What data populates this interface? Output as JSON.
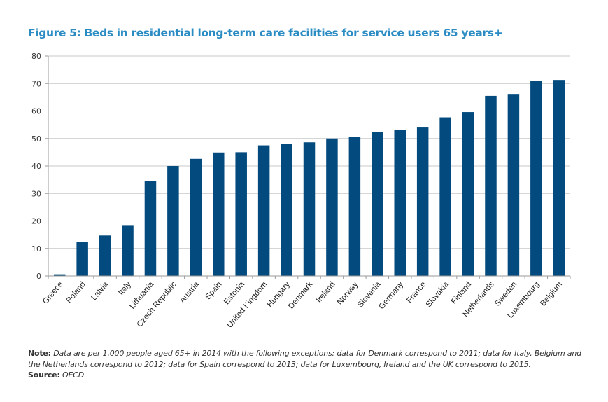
{
  "title": "Figure 5: Beds in residential long-term care facilities for service users 65 years+",
  "colors": {
    "title": "#2b8cc4",
    "bar": "#034a7e",
    "grid": "#c8c8c8",
    "axis": "#9a9a9a"
  },
  "chart_data": {
    "type": "bar",
    "title": "Figure 5: Beds in residential long-term care facilities for service users 65 years+",
    "xlabel": "",
    "ylabel": "",
    "ylim": [
      0,
      80
    ],
    "yticks": [
      0,
      10,
      20,
      30,
      40,
      50,
      60,
      70,
      80
    ],
    "grid": true,
    "legend": "none",
    "categories": [
      "Greece",
      "Poland",
      "Latvia",
      "Italy",
      "Lithuania",
      "Czech Republic",
      "Austria",
      "Spain",
      "Estonia",
      "United Kingdom",
      "Hungary",
      "Denmark",
      "Ireland",
      "Norway",
      "Slovenia",
      "Germany",
      "France",
      "Slovakia",
      "Finland",
      "Netherlands",
      "Sweden",
      "Luxembourg",
      "Belgium"
    ],
    "values": [
      0.6,
      12.4,
      14.7,
      18.5,
      34.6,
      40.0,
      42.6,
      44.9,
      45.0,
      47.5,
      48.0,
      48.6,
      50.0,
      50.7,
      52.4,
      53.0,
      54.0,
      57.7,
      59.6,
      65.5,
      66.2,
      70.9,
      71.3
    ]
  },
  "footnote": {
    "note_label": "Note:",
    "note_text": "Data are per 1,000 people aged 65+ in 2014 with the following exceptions: data for Denmark correspond to 2011; data for Italy, Belgium and the Netherlands correspond to 2012; data for Spain correspond to 2013; data for Luxembourg, Ireland and the UK correspond to 2015.",
    "source_label": "Source:",
    "source_text": "OECD."
  }
}
